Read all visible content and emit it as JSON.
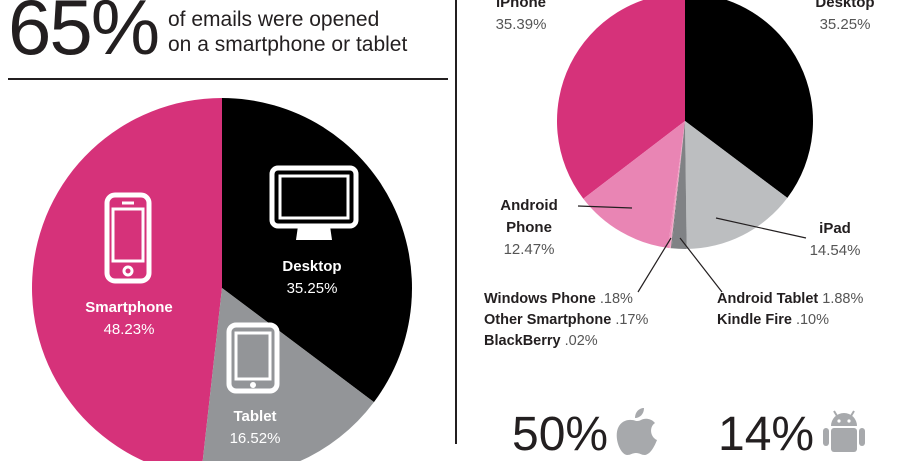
{
  "header": {
    "percent": "65%",
    "line1": "of emails were opened",
    "line2": "on a smartphone or tablet"
  },
  "chart_data": [
    {
      "type": "pie",
      "slices": [
        {
          "name": "Smartphone",
          "value": 48.23,
          "label": "48.23%",
          "color": "#d6327a"
        },
        {
          "name": "Desktop",
          "value": 35.25,
          "label": "35.25%",
          "color": "#000000"
        },
        {
          "name": "Tablet",
          "value": 16.52,
          "label": "16.52%",
          "color": "#939598"
        }
      ]
    },
    {
      "type": "pie",
      "slices": [
        {
          "name": "iPhone",
          "value": 35.39,
          "label": "35.39%",
          "color": "#d6327a"
        },
        {
          "name": "Desktop",
          "value": 35.25,
          "label": "35.25%",
          "color": "#000000"
        },
        {
          "name": "iPad",
          "value": 14.54,
          "label": "14.54%",
          "color": "#bcbec0"
        },
        {
          "name": "Android Tablet",
          "value": 1.88,
          "label": "1.88%",
          "color": "#808285"
        },
        {
          "name": "Kindle Fire",
          "value": 0.1,
          "label": ".10%",
          "color": "#6d6e71"
        },
        {
          "name": "BlackBerry",
          "value": 0.02,
          "label": ".02%",
          "color": "#f6c0d6"
        },
        {
          "name": "Other Smartphone",
          "value": 0.17,
          "label": ".17%",
          "color": "#f1a6c6"
        },
        {
          "name": "Windows Phone",
          "value": 0.18,
          "label": ".18%",
          "color": "#f08cb8"
        },
        {
          "name": "Android Phone",
          "value": 12.47,
          "label": "12.47%",
          "color": "#e985b4"
        }
      ]
    }
  ],
  "left_labels": {
    "smartphone_name": "Smartphone",
    "smartphone_val": "48.23%",
    "desktop_name": "Desktop",
    "desktop_val": "35.25%",
    "tablet_name": "Tablet",
    "tablet_val": "16.52%"
  },
  "right_labels": {
    "iphone_name": "iPhone",
    "iphone_val": "35.39%",
    "desktop_name": "Desktop",
    "desktop_val": "35.25%",
    "ipad_name": "iPad",
    "ipad_val": "14.54%",
    "android_phone_name1": "Android",
    "android_phone_name2": "Phone",
    "android_phone_val": "12.47%",
    "windows_phone_name": "Windows Phone",
    "windows_phone_val": ".18%",
    "other_smartphone_name": "Other Smartphone",
    "other_smartphone_val": ".17%",
    "blackberry_name": "BlackBerry",
    "blackberry_val": ".02%",
    "android_tablet_name": "Android Tablet",
    "android_tablet_val": "1.88%",
    "kindle_fire_name": "Kindle Fire",
    "kindle_fire_val": ".10%"
  },
  "bottom": {
    "apple_pct": "50%",
    "android_pct": "14%"
  },
  "icons": [
    "smartphone-icon",
    "desktop-icon",
    "tablet-icon",
    "apple-icon",
    "android-icon"
  ]
}
